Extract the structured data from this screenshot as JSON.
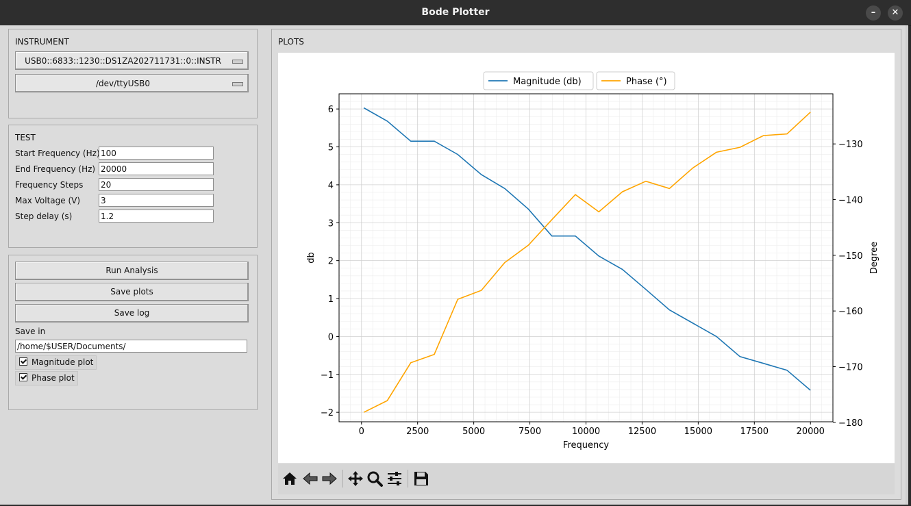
{
  "window": {
    "title": "Bode Plotter",
    "minimize_label": "–",
    "close_label": "✕"
  },
  "instrument": {
    "label": "INSTRUMENT",
    "scope_selected": "USB0::6833::1230::DS1ZA202711731::0::INSTR",
    "serial_selected": "/dev/ttyUSB0"
  },
  "test": {
    "label": "TEST",
    "fields": [
      {
        "label": "Start Frequency (Hz)",
        "value": "100"
      },
      {
        "label": "End Frequency (Hz)",
        "value": "20000"
      },
      {
        "label": "Frequency Steps",
        "value": "20"
      },
      {
        "label": "Max Voltage (V)",
        "value": "3"
      },
      {
        "label": "Step delay (s)",
        "value": "1.2"
      }
    ]
  },
  "actions": {
    "run_label": "Run Analysis",
    "save_plots_label": "Save plots",
    "save_log_label": "Save log",
    "save_in_label": "Save in",
    "save_path": "/home/$USER/Documents/",
    "magnitude_check_label": "Magnitude plot",
    "magnitude_checked": true,
    "phase_check_label": "Phase plot",
    "phase_checked": true
  },
  "plots": {
    "label": "PLOTS"
  },
  "toolbar_icons": [
    "home-icon",
    "back-arrow-icon",
    "forward-arrow-icon",
    "pan-icon",
    "zoom-icon",
    "configure-subplots-icon",
    "save-icon"
  ],
  "chart_data": {
    "type": "line",
    "x": [
      100,
      1147,
      2195,
      3242,
      4289,
      5337,
      6384,
      7432,
      8479,
      9526,
      10574,
      11621,
      12668,
      13716,
      14763,
      15811,
      16858,
      17905,
      18953,
      20000
    ],
    "series": [
      {
        "name": "Magnitude (db)",
        "axis": "left",
        "color": "#1f77b4",
        "values": [
          6.03,
          5.68,
          5.15,
          5.15,
          4.8,
          4.27,
          3.9,
          3.36,
          2.65,
          2.65,
          2.12,
          1.77,
          1.24,
          0.7,
          0.35,
          0.0,
          -0.53,
          -0.71,
          -0.89,
          -1.42
        ]
      },
      {
        "name": "Phase (°)",
        "axis": "right",
        "color": "#ffa500",
        "values": [
          -178.2,
          -176.1,
          -169.3,
          -167.8,
          -157.9,
          -156.3,
          -151.3,
          -148.2,
          -143.6,
          -139.1,
          -142.2,
          -138.6,
          -136.7,
          -138.0,
          -134.3,
          -131.5,
          -130.6,
          -128.5,
          -128.2,
          -124.3
        ]
      }
    ],
    "xlabel": "Frequency",
    "ylabel": "db",
    "ylabel_right": "Degree",
    "xlim": [
      -1000,
      21000
    ],
    "ylim": [
      -2.25,
      6.4
    ],
    "ylim_right": [
      -179.9,
      -121.0
    ],
    "xticks": [
      0,
      2500,
      5000,
      7500,
      10000,
      12500,
      15000,
      17500,
      20000
    ],
    "yticks": [
      -2,
      -1,
      0,
      1,
      2,
      3,
      4,
      5,
      6
    ],
    "yticks_right": [
      -180,
      -170,
      -160,
      -150,
      -140,
      -130
    ],
    "grid": true,
    "minor_grid": true,
    "legend_position": "top-center"
  }
}
